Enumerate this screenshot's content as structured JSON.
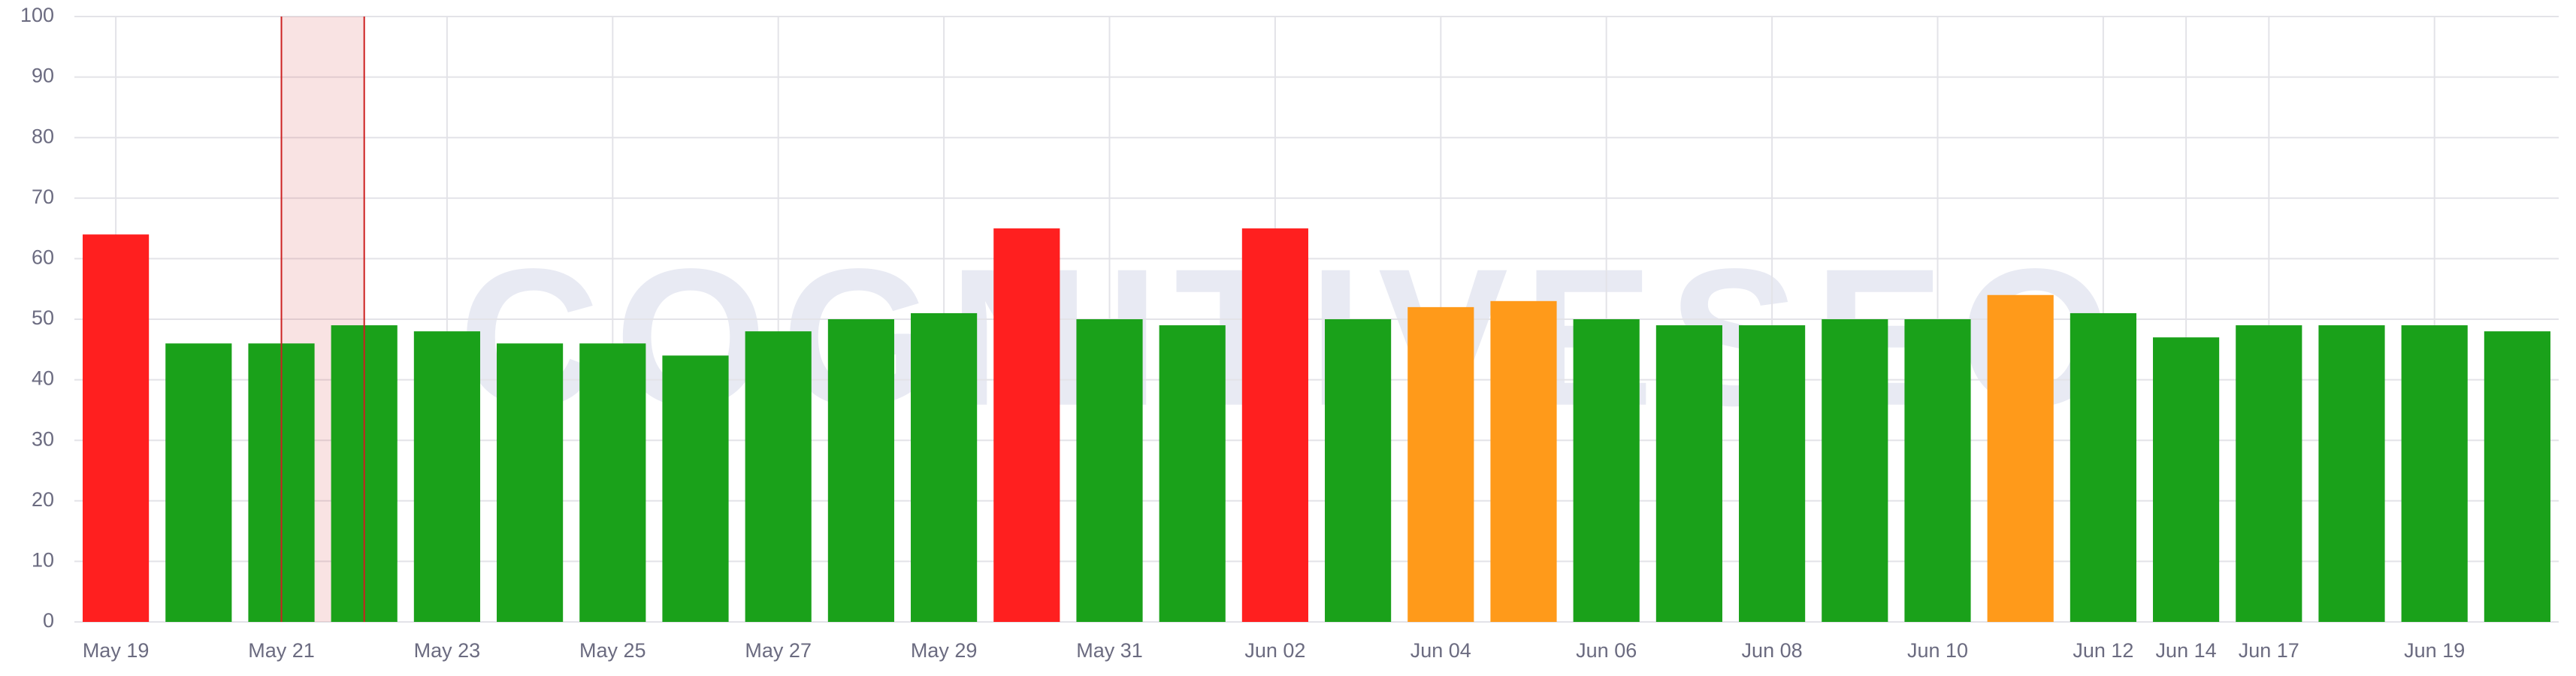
{
  "chart_data": {
    "type": "bar",
    "watermark": "COGNITIVESEO",
    "categories": [
      "May 19",
      null,
      "May 21",
      null,
      "May 23",
      null,
      "May 25",
      null,
      "May 27",
      null,
      "May 29",
      null,
      "May 31",
      null,
      "Jun 02",
      null,
      "Jun 04",
      null,
      "Jun 06",
      null,
      "Jun 08",
      null,
      "Jun 10",
      null,
      "Jun 12",
      "Jun 14",
      "Jun 17",
      null,
      "Jun 19",
      null
    ],
    "values": [
      64,
      46,
      46,
      49,
      48,
      46,
      46,
      44,
      48,
      50,
      51,
      65,
      50,
      49,
      65,
      50,
      52,
      53,
      50,
      49,
      49,
      50,
      50,
      54,
      51,
      47,
      49,
      49,
      49,
      48
    ],
    "colors": [
      "#ff1f1f",
      "#1aa11a",
      "#1aa11a",
      "#1aa11a",
      "#1aa11a",
      "#1aa11a",
      "#1aa11a",
      "#1aa11a",
      "#1aa11a",
      "#1aa11a",
      "#1aa11a",
      "#ff1f1f",
      "#1aa11a",
      "#1aa11a",
      "#ff1f1f",
      "#1aa11a",
      "#ff9a1a",
      "#ff9a1a",
      "#1aa11a",
      "#1aa11a",
      "#1aa11a",
      "#1aa11a",
      "#1aa11a",
      "#ff9a1a",
      "#1aa11a",
      "#1aa11a",
      "#1aa11a",
      "#1aa11a",
      "#1aa11a",
      "#1aa11a"
    ],
    "ylim": [
      0,
      100
    ],
    "yticks": [
      0,
      10,
      20,
      30,
      40,
      50,
      60,
      70,
      80,
      90,
      100
    ],
    "grid": true
  }
}
